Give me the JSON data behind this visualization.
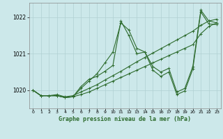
{
  "xlabel": "Graphe pression niveau de la mer (hPa)",
  "ylabel": "",
  "bg_color": "#cce8ea",
  "grid_color": "#b0d0d2",
  "line_color": "#2d6b2d",
  "xlim": [
    -0.5,
    23.5
  ],
  "ylim": [
    1019.5,
    1022.4
  ],
  "yticks": [
    1020,
    1021,
    1022
  ],
  "xticks": [
    0,
    1,
    2,
    3,
    4,
    5,
    6,
    7,
    8,
    9,
    10,
    11,
    12,
    13,
    14,
    15,
    16,
    17,
    18,
    19,
    20,
    21,
    22,
    23
  ],
  "series": [
    {
      "x": [
        0,
        1,
        2,
        3,
        4,
        5,
        6,
        7,
        8,
        9,
        10,
        11,
        12,
        13,
        14,
        15,
        16,
        17,
        18,
        19,
        20,
        21,
        22,
        23
      ],
      "y": [
        1020.0,
        1019.85,
        1019.85,
        1019.85,
        1019.8,
        1019.82,
        1019.88,
        1019.95,
        1020.05,
        1020.15,
        1020.25,
        1020.35,
        1020.45,
        1020.55,
        1020.65,
        1020.75,
        1020.85,
        1020.95,
        1021.05,
        1021.15,
        1021.25,
        1021.55,
        1021.75,
        1021.85
      ]
    },
    {
      "x": [
        0,
        1,
        2,
        3,
        4,
        5,
        6,
        7,
        8,
        9,
        10,
        11,
        12,
        13,
        14,
        15,
        16,
        17,
        18,
        19,
        20,
        21,
        22,
        23
      ],
      "y": [
        1020.0,
        1019.85,
        1019.85,
        1019.88,
        1019.82,
        1019.85,
        1019.95,
        1020.05,
        1020.15,
        1020.28,
        1020.4,
        1020.52,
        1020.65,
        1020.78,
        1020.9,
        1021.02,
        1021.14,
        1021.26,
        1021.38,
        1021.5,
        1021.62,
        1021.78,
        1021.9,
        1021.95
      ]
    },
    {
      "x": [
        0,
        1,
        2,
        3,
        4,
        5,
        6,
        7,
        8,
        9,
        10,
        11,
        12,
        13,
        14,
        15,
        16,
        17,
        18,
        19,
        20,
        21,
        22,
        23
      ],
      "y": [
        1020.0,
        1019.85,
        1019.85,
        1019.85,
        1019.8,
        1019.82,
        1020.05,
        1020.25,
        1020.45,
        1020.75,
        1021.05,
        1021.85,
        1021.65,
        1021.15,
        1021.05,
        1020.65,
        1020.5,
        1020.6,
        1019.95,
        1020.05,
        1020.65,
        1022.2,
        1021.9,
        1021.85
      ]
    },
    {
      "x": [
        0,
        1,
        2,
        3,
        4,
        5,
        6,
        7,
        8,
        9,
        10,
        11,
        12,
        13,
        14,
        15,
        16,
        17,
        18,
        19,
        20,
        21,
        22,
        23
      ],
      "y": [
        1020.0,
        1019.85,
        1019.85,
        1019.85,
        1019.8,
        1019.82,
        1020.1,
        1020.3,
        1020.38,
        1020.52,
        1020.68,
        1021.9,
        1021.5,
        1021.0,
        1021.05,
        1020.55,
        1020.38,
        1020.5,
        1019.88,
        1019.98,
        1020.58,
        1022.15,
        1021.82,
        1021.8
      ]
    }
  ]
}
